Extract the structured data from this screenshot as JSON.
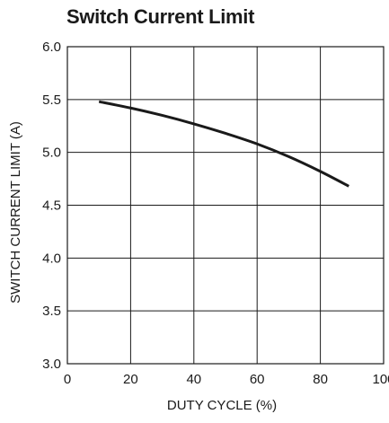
{
  "chart_data": {
    "type": "line",
    "title": "Switch Current Limit",
    "xlabel": "DUTY CYCLE (%)",
    "ylabel": "SWITCH CURRENT  LIMIT (A)",
    "xlim": [
      0,
      100
    ],
    "ylim": [
      3.0,
      6.0
    ],
    "x_ticks": [
      0,
      20,
      40,
      60,
      80,
      100
    ],
    "y_ticks": [
      3.0,
      3.5,
      4.0,
      4.5,
      5.0,
      5.5,
      6.0
    ],
    "x_tick_labels": [
      "0",
      "20",
      "40",
      "60",
      "80",
      "100"
    ],
    "y_tick_labels": [
      "3.0",
      "3.5",
      "4.0",
      "4.5",
      "5.0",
      "5.5",
      "6.0"
    ],
    "grid": true,
    "line_color": "#1a1a1a",
    "grid_color": "#1a1a1a",
    "series": [
      {
        "x": [
          10,
          20,
          30,
          40,
          50,
          60,
          70,
          80,
          89
        ],
        "y": [
          5.48,
          5.42,
          5.35,
          5.27,
          5.18,
          5.08,
          4.96,
          4.82,
          4.68
        ]
      }
    ]
  }
}
